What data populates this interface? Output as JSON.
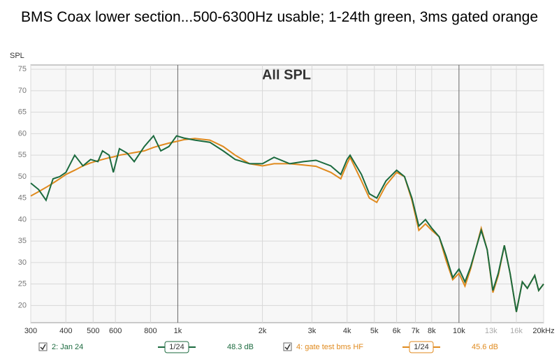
{
  "chart_data": {
    "type": "line",
    "title": "BMS Coax lower section...500-6300Hz usable; 1-24th green, 3ms gated orange",
    "annotation": "All SPL",
    "y_label": "SPL",
    "log_x": true,
    "grid": true,
    "xlim": [
      300,
      20000
    ],
    "ylim": [
      16,
      76
    ],
    "xticks": [
      300,
      400,
      500,
      600,
      800,
      {
        "value": 1000,
        "label": "1k"
      },
      {
        "value": 2000,
        "label": "2k"
      },
      {
        "value": 3000,
        "label": "3k"
      },
      {
        "value": 4000,
        "label": "4k"
      },
      {
        "value": 5000,
        "label": "5k"
      },
      {
        "value": 6000,
        "label": "6k"
      },
      {
        "value": 7000,
        "label": "7k"
      },
      {
        "value": 8000,
        "label": "8k"
      },
      {
        "value": 10000,
        "label": "10k"
      },
      {
        "value": 13000,
        "label": "13k"
      },
      {
        "value": 16000,
        "label": "16k"
      },
      {
        "value": 20000,
        "label": "20kHz"
      }
    ],
    "yticks": [
      20,
      25,
      30,
      35,
      40,
      45,
      50,
      55,
      60,
      65,
      70,
      75
    ],
    "x": [
      300,
      320,
      340,
      360,
      380,
      400,
      430,
      460,
      490,
      520,
      540,
      570,
      590,
      620,
      660,
      700,
      760,
      820,
      870,
      930,
      990,
      1050,
      1150,
      1300,
      1450,
      1600,
      1800,
      2000,
      2200,
      2500,
      2800,
      3100,
      3500,
      3800,
      4000,
      4100,
      4500,
      4800,
      5100,
      5500,
      6000,
      6400,
      6800,
      7200,
      7600,
      8000,
      8500,
      9000,
      9500,
      10000,
      10500,
      11000,
      12000,
      12600,
      13200,
      13800,
      14500,
      15200,
      16000,
      16800,
      17500,
      18600,
      19200,
      20000
    ],
    "series": [
      {
        "name": "2: Jan 24",
        "smoothing": "1/24",
        "level": "48.3 dB",
        "color": "#1b6a3e",
        "values": [
          48.5,
          47,
          44.5,
          49.5,
          50,
          51,
          55,
          52.5,
          54,
          53.5,
          56,
          55,
          51,
          56.5,
          55.5,
          53.5,
          57,
          59.5,
          56,
          57,
          59.5,
          59,
          58.5,
          58,
          56,
          54,
          53,
          53,
          54.5,
          53,
          53.5,
          53.8,
          52.5,
          50.5,
          54,
          55,
          50.5,
          46,
          45,
          49,
          51.5,
          50,
          45,
          38.5,
          40,
          38,
          36,
          31.5,
          26.5,
          28.5,
          25.5,
          29,
          37.5,
          33,
          23.5,
          27.5,
          34,
          27.5,
          18.5,
          25.5,
          24,
          27,
          23.5,
          25
        ]
      },
      {
        "name": "4: gate test bms HF",
        "smoothing": "1/24",
        "level": "45.6 dB",
        "color": "#e08a1e",
        "values": [
          45.5,
          46.5,
          47.5,
          48.5,
          49.5,
          50.5,
          51.5,
          52.5,
          53.2,
          53.7,
          54,
          54.4,
          54.6,
          55,
          55.3,
          55.6,
          56,
          56.8,
          57.3,
          57.8,
          58.2,
          58.6,
          58.9,
          58.5,
          57,
          55,
          53,
          52.5,
          53,
          53,
          52.7,
          52.4,
          51,
          49.5,
          53,
          54.5,
          49,
          45,
          44,
          48,
          51,
          50,
          44.5,
          37.5,
          39,
          37.5,
          36,
          30.5,
          26,
          27.5,
          24.5,
          28.5,
          38,
          33,
          23,
          27,
          34,
          27.5,
          18.5,
          25.5,
          24,
          27,
          23.5,
          25
        ]
      }
    ]
  }
}
